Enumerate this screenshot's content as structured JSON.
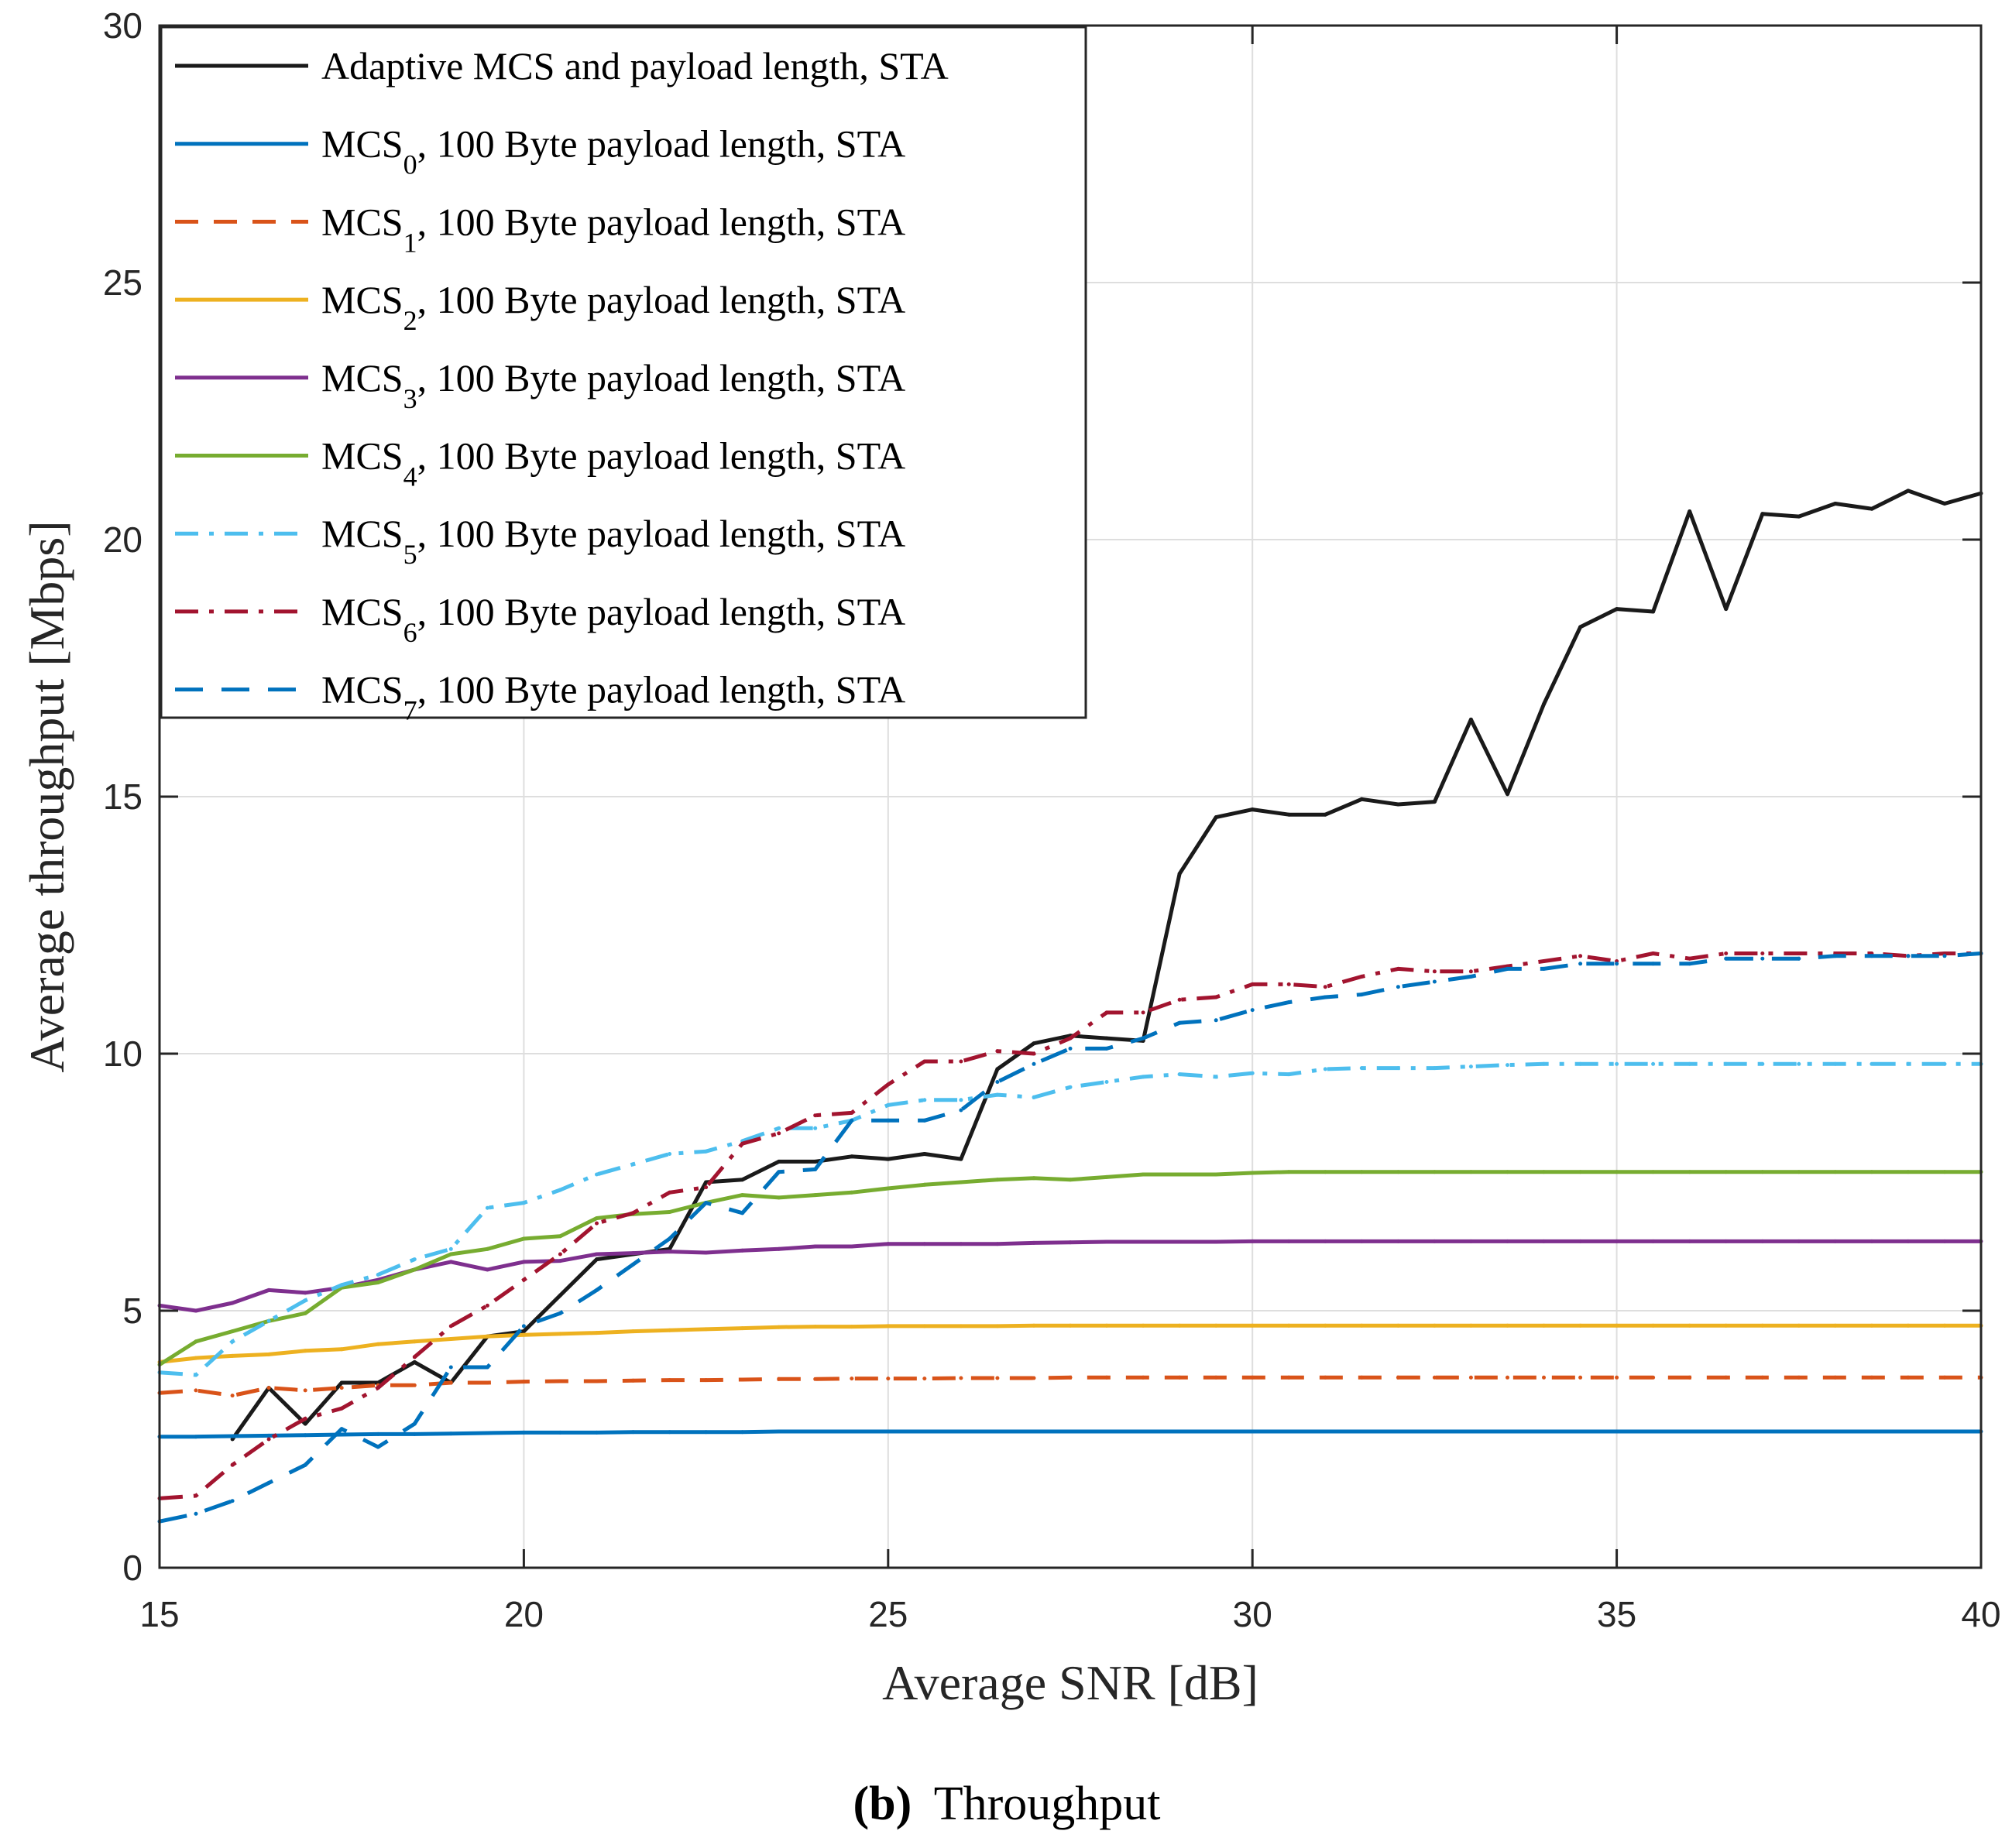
{
  "chart_data": {
    "type": "line",
    "title": "",
    "xlabel": "Average SNR [dB]",
    "ylabel": "Average throughput [Mbps]",
    "xlim": [
      15,
      40
    ],
    "ylim": [
      0,
      30
    ],
    "xticks": [
      15,
      20,
      25,
      30,
      35,
      40
    ],
    "yticks": [
      0,
      5,
      10,
      15,
      20,
      25,
      30
    ],
    "grid": true,
    "legend_position": "top-left",
    "caption": {
      "letter": "(b)",
      "text": "Throughput"
    },
    "x": [
      15,
      15.5,
      16,
      16.5,
      17,
      17.5,
      18,
      18.5,
      19,
      19.5,
      20,
      20.5,
      21,
      21.5,
      22,
      22.5,
      23,
      23.5,
      24,
      24.5,
      25,
      25.5,
      26,
      26.5,
      27,
      27.5,
      28,
      28.5,
      29,
      29.5,
      30,
      30.5,
      31,
      31.5,
      32,
      32.5,
      33,
      33.5,
      34,
      34.5,
      35,
      35.5,
      36,
      36.5,
      37,
      37.5,
      38,
      38.5,
      39,
      39.5,
      40
    ],
    "series": [
      {
        "name": "Adaptive MCS and payload length, STA",
        "label_main": "Adaptive MCS and payload length, STA",
        "label_sub": "",
        "label_rest": "",
        "color": "#1a1a1a",
        "dash": "solid",
        "values": [
          null,
          null,
          2.5,
          3.5,
          2.8,
          3.6,
          3.6,
          4.0,
          3.6,
          4.5,
          4.6,
          5.3,
          6.0,
          6.1,
          6.2,
          7.5,
          7.55,
          7.9,
          7.9,
          8.0,
          7.95,
          8.05,
          7.95,
          9.7,
          10.2,
          10.35,
          10.3,
          10.25,
          13.5,
          14.6,
          14.75,
          14.65,
          14.65,
          14.95,
          14.85,
          14.9,
          16.5,
          15.05,
          16.8,
          18.3,
          18.65,
          18.6,
          20.55,
          18.65,
          20.5,
          20.45,
          20.7,
          20.6,
          20.95,
          20.7,
          20.9
        ]
      },
      {
        "name": "MCS0, 100 Byte payload length, STA",
        "label_main": "MCS",
        "label_sub": "0",
        "label_rest": ", 100 Byte payload length, STA",
        "color": "#0072bd",
        "dash": "solid",
        "values": [
          2.55,
          2.55,
          2.56,
          2.57,
          2.58,
          2.59,
          2.6,
          2.6,
          2.61,
          2.62,
          2.63,
          2.63,
          2.63,
          2.64,
          2.64,
          2.64,
          2.64,
          2.65,
          2.65,
          2.65,
          2.65,
          2.65,
          2.65,
          2.65,
          2.65,
          2.65,
          2.65,
          2.65,
          2.65,
          2.65,
          2.65,
          2.65,
          2.65,
          2.65,
          2.65,
          2.65,
          2.65,
          2.65,
          2.65,
          2.65,
          2.65,
          2.65,
          2.65,
          2.65,
          2.65,
          2.65,
          2.65,
          2.65,
          2.65,
          2.65,
          2.65
        ]
      },
      {
        "name": "MCS1, 100 Byte payload length, STA",
        "label_main": "MCS",
        "label_sub": "1",
        "label_rest": ", 100 Byte payload length, STA",
        "color": "#d95319",
        "dash": "dashed",
        "values": [
          3.4,
          3.45,
          3.35,
          3.5,
          3.45,
          3.5,
          3.55,
          3.55,
          3.6,
          3.6,
          3.62,
          3.63,
          3.63,
          3.64,
          3.65,
          3.65,
          3.66,
          3.67,
          3.67,
          3.68,
          3.68,
          3.68,
          3.69,
          3.69,
          3.69,
          3.7,
          3.7,
          3.7,
          3.7,
          3.7,
          3.7,
          3.7,
          3.7,
          3.7,
          3.7,
          3.7,
          3.7,
          3.7,
          3.7,
          3.7,
          3.7,
          3.7,
          3.7,
          3.7,
          3.7,
          3.7,
          3.7,
          3.7,
          3.7,
          3.7,
          3.7
        ]
      },
      {
        "name": "MCS2, 100 Byte payload length, STA",
        "label_main": "MCS",
        "label_sub": "2",
        "label_rest": ", 100 Byte payload length, STA",
        "color": "#edb120",
        "dash": "solid",
        "values": [
          4.0,
          4.08,
          4.12,
          4.15,
          4.22,
          4.25,
          4.35,
          4.4,
          4.45,
          4.5,
          4.53,
          4.55,
          4.57,
          4.6,
          4.62,
          4.64,
          4.66,
          4.68,
          4.69,
          4.69,
          4.7,
          4.7,
          4.7,
          4.7,
          4.71,
          4.71,
          4.71,
          4.71,
          4.71,
          4.71,
          4.71,
          4.71,
          4.71,
          4.71,
          4.71,
          4.71,
          4.71,
          4.71,
          4.71,
          4.71,
          4.71,
          4.71,
          4.71,
          4.71,
          4.71,
          4.71,
          4.71,
          4.71,
          4.71,
          4.71,
          4.71
        ]
      },
      {
        "name": "MCS3, 100 Byte payload length, STA",
        "label_main": "MCS",
        "label_sub": "3",
        "label_rest": ", 100 Byte payload length, STA",
        "color": "#7e2f8e",
        "dash": "solid",
        "values": [
          5.1,
          5.0,
          5.15,
          5.4,
          5.35,
          5.45,
          5.6,
          5.8,
          5.95,
          5.8,
          5.95,
          5.97,
          6.1,
          6.12,
          6.15,
          6.13,
          6.17,
          6.2,
          6.25,
          6.25,
          6.3,
          6.3,
          6.3,
          6.3,
          6.32,
          6.33,
          6.34,
          6.34,
          6.34,
          6.34,
          6.35,
          6.35,
          6.35,
          6.35,
          6.35,
          6.35,
          6.35,
          6.35,
          6.35,
          6.35,
          6.35,
          6.35,
          6.35,
          6.35,
          6.35,
          6.35,
          6.35,
          6.35,
          6.35,
          6.35,
          6.35
        ]
      },
      {
        "name": "MCS4, 100 Byte payload length, STA",
        "label_main": "MCS",
        "label_sub": "4",
        "label_rest": ", 100 Byte payload length, STA",
        "color": "#77ac30",
        "dash": "solid",
        "values": [
          3.95,
          4.4,
          4.6,
          4.8,
          4.95,
          5.45,
          5.55,
          5.8,
          6.1,
          6.2,
          6.4,
          6.45,
          6.8,
          6.88,
          6.92,
          7.1,
          7.25,
          7.2,
          7.25,
          7.3,
          7.38,
          7.45,
          7.5,
          7.55,
          7.58,
          7.55,
          7.6,
          7.65,
          7.65,
          7.65,
          7.68,
          7.7,
          7.7,
          7.7,
          7.7,
          7.7,
          7.7,
          7.7,
          7.7,
          7.7,
          7.7,
          7.7,
          7.7,
          7.7,
          7.7,
          7.7,
          7.7,
          7.7,
          7.7,
          7.7,
          7.7
        ]
      },
      {
        "name": "MCS5, 100 Byte payload length, STA",
        "label_main": "MCS",
        "label_sub": "5",
        "label_rest": ", 100 Byte payload length, STA",
        "color": "#4dbeee",
        "dash": "dashdot",
        "values": [
          3.8,
          3.75,
          4.4,
          4.8,
          5.2,
          5.5,
          5.7,
          6.0,
          6.2,
          7.0,
          7.1,
          7.35,
          7.65,
          7.85,
          8.05,
          8.1,
          8.3,
          8.55,
          8.55,
          8.7,
          9.0,
          9.1,
          9.1,
          9.2,
          9.15,
          9.35,
          9.45,
          9.55,
          9.6,
          9.55,
          9.62,
          9.6,
          9.7,
          9.72,
          9.72,
          9.72,
          9.75,
          9.78,
          9.8,
          9.8,
          9.8,
          9.8,
          9.8,
          9.8,
          9.8,
          9.8,
          9.8,
          9.8,
          9.8,
          9.8,
          9.8
        ]
      },
      {
        "name": "MCS6, 100 Byte payload length, STA",
        "label_main": "MCS",
        "label_sub": "6",
        "label_rest": ", 100 Byte payload length, STA",
        "color": "#a2142f",
        "dash": "dashdot",
        "values": [
          1.35,
          1.4,
          2.0,
          2.5,
          2.9,
          3.1,
          3.5,
          4.1,
          4.7,
          5.1,
          5.6,
          6.1,
          6.7,
          6.9,
          7.3,
          7.4,
          8.25,
          8.45,
          8.8,
          8.85,
          9.4,
          9.85,
          9.85,
          10.05,
          10.0,
          10.3,
          10.8,
          10.8,
          11.05,
          11.1,
          11.35,
          11.35,
          11.3,
          11.5,
          11.65,
          11.6,
          11.6,
          11.7,
          11.8,
          11.9,
          11.8,
          11.95,
          11.85,
          11.95,
          11.95,
          11.95,
          11.95,
          11.95,
          11.9,
          11.95,
          11.95
        ]
      },
      {
        "name": "MCS7, 100 Byte payload length, STA",
        "label_main": "MCS",
        "label_sub": "7",
        "label_rest": ", 100 Byte payload length, STA",
        "color": "#0072bd",
        "dash": "longdash",
        "values": [
          0.9,
          1.05,
          1.3,
          1.65,
          2.0,
          2.7,
          2.35,
          2.8,
          3.9,
          3.9,
          4.7,
          4.95,
          5.4,
          5.9,
          6.4,
          7.1,
          6.9,
          7.7,
          7.75,
          8.7,
          8.7,
          8.7,
          8.9,
          9.45,
          9.8,
          10.1,
          10.1,
          10.3,
          10.6,
          10.65,
          10.85,
          11.0,
          11.1,
          11.15,
          11.3,
          11.4,
          11.5,
          11.65,
          11.65,
          11.75,
          11.75,
          11.75,
          11.75,
          11.85,
          11.85,
          11.85,
          11.9,
          11.9,
          11.9,
          11.9,
          11.95
        ]
      }
    ]
  }
}
